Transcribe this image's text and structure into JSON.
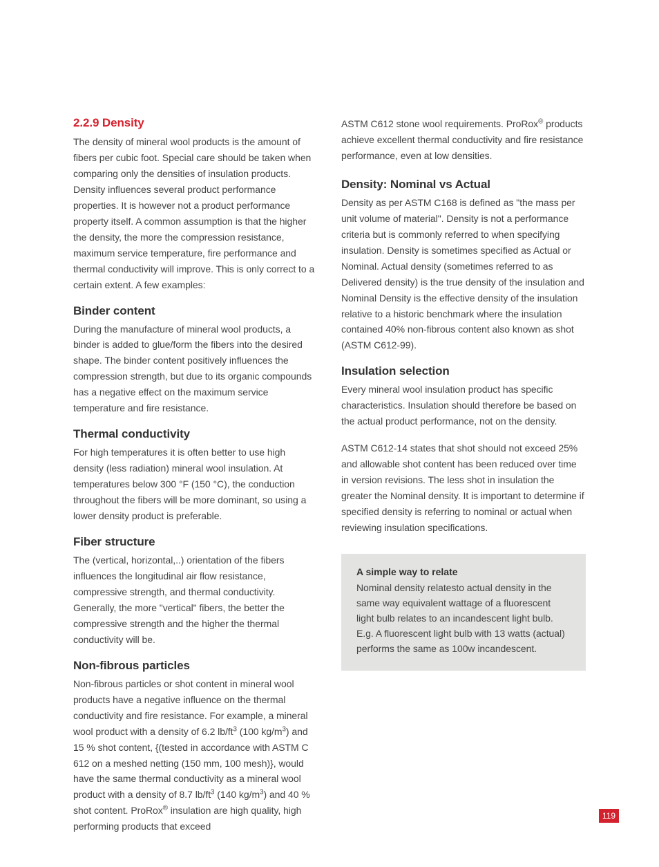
{
  "left": {
    "heading": "2.2.9 Density",
    "intro": "The density of mineral wool products is the amount of fibers per cubic foot. Special care should be taken when comparing only the densities of insulation products. Density influences several product performance properties. It is however not a product performance property itself. A common assumption is that the higher the density, the more the compression resistance, maximum service temperature, fire performance and thermal conductivity will improve. This is only correct to a certain extent. A few examples:",
    "binder_h": "Binder content",
    "binder_t": "During the manufacture of mineral wool products, a binder is added to glue/form the fibers into the desired shape. The binder content positively influences the compression strength, but due to its organic compounds has a negative effect on the maximum service temperature and fire resistance.",
    "thermal_h": "Thermal conductivity",
    "thermal_t": "For high temperatures it is often better to use high density (less radiation) mineral wool insulation. At temperatures below 300 °F (150 °C), the conduction throughout the fibers will be more dominant, so using a lower density product is preferable.",
    "fiber_h": "Fiber structure",
    "fiber_t": "The (vertical, horizontal,..) orientation of the fibers influences the longitudinal air flow resistance, compressive strength, and thermal conductivity. Generally, the more \"vertical\" fibers, the better the compressive strength and the higher the thermal conductivity will be.",
    "nonfib_h": "Non-fibrous particles",
    "nonfib_t_html": "Non-fibrous particles or shot content in mineral wool products have a negative influence on the thermal conductivity and fire resistance. For example, a mineral wool product with a density of 6.2 lb/ft<sup>3</sup> (100 kg/m<sup>3</sup>) and 15 % shot content, {(tested in accordance with ASTM C 612 on a meshed netting (150 mm, 100 mesh)}, would have the same thermal conductivity as a mineral wool product with a density of 8.7 lb/ft<sup>3</sup> (140 kg/m<sup>3</sup>) and 40 % shot content. ProRox<sup>®</sup> insulation are high quality, high performing products that exceed"
  },
  "right": {
    "cont_html": "ASTM C612 stone wool requirements. ProRox<sup>®</sup> products achieve excellent thermal conductivity and fire resistance performance, even at low densities.",
    "dens_h": "Density: Nominal vs Actual",
    "dens_t": "Density as per ASTM C168 is defined  as \"the mass per unit volume of material\". Density is not a performance criteria but is commonly referred to when specifying insulation.  Density is sometimes specified as Actual or Nominal. Actual density (sometimes referred to as Delivered density) is the true density of the insulation and Nominal Density is the effective density of the insulation relative to a historic benchmark where the insulation contained 40% non-fibrous  content also known as shot (ASTM C612-99).",
    "insul_h": "Insulation selection",
    "insul_t1": "Every mineral wool insulation product has specific characteristics. Insulation should therefore be based on the actual product performance, not on the density.",
    "insul_t2": "ASTM C612-14 states that shot should not exceed 25% and allowable shot content has been reduced over time in version revisions.  The less shot in insulation the greater the Nominal density. It is important to determine if specified density is referring to nominal or actual when reviewing insulation specifications.",
    "callout_h": "A simple way to relate",
    "callout_t": "Nominal density relatesto actual density in the same way equivalent wattage of a fluorescent light bulb relates to an incandescent light bulb.  E.g.  A fluorescent light bulb with 13 watts (actual) performs the same as 100w incandescent."
  },
  "page_number": "119",
  "colors": {
    "accent": "#d4212e",
    "text": "#444444",
    "heading": "#333333",
    "callout_bg": "#e3e3e2",
    "background": "#ffffff"
  }
}
